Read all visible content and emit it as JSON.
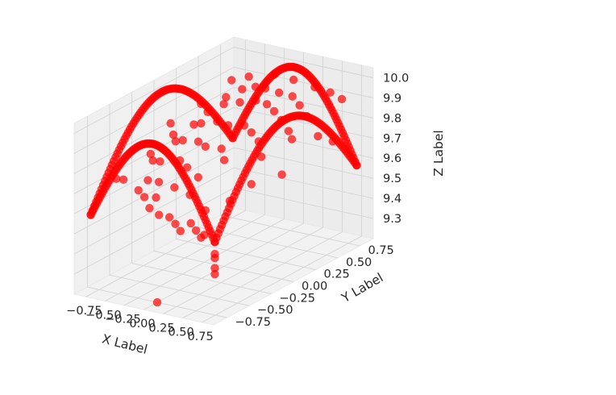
{
  "chart_data": {
    "type": "scatter",
    "projection": "3d",
    "title": "",
    "xlabel": "X Label",
    "ylabel": "Y Label",
    "zlabel": "Z Label",
    "xlim": [
      -0.9,
      0.9
    ],
    "ylim": [
      -0.9,
      0.9
    ],
    "zlim": [
      9.2,
      10.05
    ],
    "x_ticks": [
      "−0.75",
      "−0.50",
      "−0.25",
      "0.00",
      "0.25",
      "0.50",
      "0.75"
    ],
    "y_ticks": [
      "−0.75",
      "−0.50",
      "−0.25",
      "0.00",
      "0.25",
      "0.50",
      "0.75"
    ],
    "z_ticks": [
      "9.3",
      "9.4",
      "9.5",
      "9.6",
      "9.7",
      "9.8",
      "9.9",
      "10.0"
    ],
    "grid": true,
    "marker_color": "#ff0000",
    "pane_color": "#f2f2f2",
    "series": [
      {
        "edges": [
          {
            "from": [
              -0.8,
              -0.8
            ],
            "to": [
              0.8,
              -0.8
            ]
          },
          {
            "from": [
              0.8,
              -0.8
            ],
            "to": [
              0.8,
              0.8
            ]
          },
          {
            "from": [
              0.8,
              0.8
            ],
            "to": [
              -0.8,
              0.8
            ]
          },
          {
            "from": [
              -0.8,
              0.8
            ],
            "to": [
              -0.8,
              -0.8
            ]
          }
        ],
        "z_peak": 10.0,
        "z_corner": 9.58,
        "samples_per_edge": 80,
        "scatter": [
          [
            -0.6,
            0.55,
            9.86
          ],
          [
            -0.45,
            0.6,
            9.9
          ],
          [
            -0.3,
            0.62,
            9.92
          ],
          [
            -0.15,
            0.6,
            9.93
          ],
          [
            0.05,
            0.58,
            9.93
          ],
          [
            0.2,
            0.6,
            9.92
          ],
          [
            0.35,
            0.55,
            9.9
          ],
          [
            0.5,
            0.5,
            9.87
          ],
          [
            -0.55,
            0.3,
            9.85
          ],
          [
            -0.4,
            0.35,
            9.89
          ],
          [
            -0.25,
            0.4,
            9.9
          ],
          [
            -0.1,
            0.45,
            9.91
          ],
          [
            0.1,
            0.4,
            9.92
          ],
          [
            0.25,
            0.35,
            9.91
          ],
          [
            0.4,
            0.3,
            9.89
          ],
          [
            0.55,
            0.25,
            9.86
          ],
          [
            -0.5,
            0.1,
            9.84
          ],
          [
            -0.35,
            0.05,
            9.87
          ],
          [
            -0.2,
            0.1,
            9.88
          ],
          [
            0.0,
            0.05,
            9.89
          ],
          [
            0.15,
            0.1,
            9.89
          ],
          [
            0.3,
            0.05,
            9.88
          ],
          [
            0.45,
            0.0,
            9.86
          ],
          [
            -0.45,
            -0.15,
            9.82
          ],
          [
            -0.3,
            -0.2,
            9.85
          ],
          [
            -0.1,
            -0.2,
            9.86
          ],
          [
            0.05,
            -0.25,
            9.86
          ],
          [
            0.2,
            -0.2,
            9.85
          ],
          [
            0.35,
            -0.3,
            9.83
          ],
          [
            -0.4,
            -0.45,
            9.8
          ],
          [
            -0.25,
            -0.5,
            9.82
          ],
          [
            -0.05,
            -0.45,
            9.83
          ],
          [
            0.1,
            -0.5,
            9.82
          ],
          [
            0.3,
            -0.55,
            9.8
          ],
          [
            -0.6,
            -0.3,
            9.78
          ],
          [
            -0.65,
            0.0,
            9.8
          ],
          [
            0.6,
            -0.1,
            9.82
          ],
          [
            0.65,
            0.2,
            9.84
          ],
          [
            0.7,
            0.45,
            9.8
          ],
          [
            0.72,
            0.6,
            9.74
          ],
          [
            0.75,
            0.0,
            9.72
          ],
          [
            -0.2,
            -0.72,
            9.7
          ],
          [
            -0.1,
            -0.75,
            9.66
          ],
          [
            0.0,
            -0.73,
            9.63
          ],
          [
            0.1,
            -0.7,
            9.62
          ],
          [
            0.2,
            -0.72,
            9.6
          ],
          [
            -0.3,
            -0.7,
            9.72
          ],
          [
            -0.15,
            -0.6,
            9.75
          ],
          [
            0.4,
            -0.72,
            9.62
          ],
          [
            0.5,
            -0.75,
            9.6
          ],
          [
            0.6,
            -0.78,
            9.58
          ],
          [
            0.55,
            -0.7,
            9.57
          ],
          [
            0.8,
            -0.8,
            9.5
          ],
          [
            0.8,
            -0.8,
            9.45
          ],
          [
            0.8,
            -0.8,
            9.42
          ],
          [
            0.8,
            -0.8,
            9.52
          ],
          [
            -0.7,
            -0.6,
            9.72
          ],
          [
            -0.55,
            -0.65,
            9.74
          ],
          [
            -0.75,
            0.4,
            9.85
          ],
          [
            -0.7,
            0.7,
            9.9
          ],
          [
            0.0,
            -0.75,
            9.2
          ],
          [
            -0.05,
            -0.72,
            9.71
          ],
          [
            0.05,
            -0.6,
            9.74
          ],
          [
            0.25,
            -0.6,
            9.72
          ],
          [
            -0.35,
            -0.55,
            9.73
          ],
          [
            0.3,
            -0.75,
            9.58
          ],
          [
            0.45,
            -0.6,
            9.66
          ],
          [
            0.65,
            -0.5,
            9.7
          ],
          [
            0.7,
            -0.3,
            9.74
          ],
          [
            -0.8,
            0.1,
            9.82
          ],
          [
            -0.2,
            0.75,
            9.96
          ],
          [
            0.35,
            0.72,
            9.95
          ],
          [
            0.55,
            0.72,
            9.94
          ],
          [
            0.7,
            0.72,
            9.92
          ],
          [
            0.1,
            0.7,
            9.97
          ],
          [
            -0.5,
            0.72,
            9.93
          ]
        ]
      }
    ]
  }
}
